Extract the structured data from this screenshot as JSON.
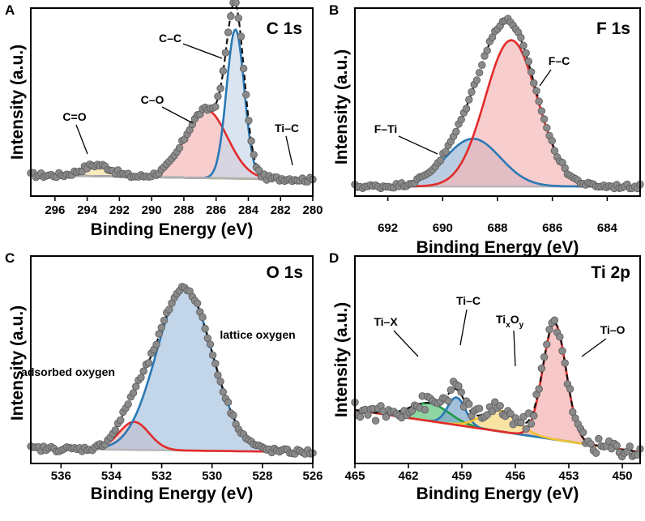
{
  "chart_data": [
    {
      "type": "line",
      "panel": "A",
      "title": "C 1s",
      "xlabel": "Binding Energy (eV)",
      "ylabel": "Intensity (a.u.)",
      "xlim": [
        297.5,
        280
      ],
      "xticks": [
        "296",
        "294",
        "292",
        "290",
        "288",
        "286",
        "284",
        "282",
        "280"
      ],
      "tick_values": [
        296,
        294,
        292,
        290,
        288,
        286,
        284,
        282,
        280
      ],
      "ylim": [
        0,
        1
      ],
      "baseline": [
        [
          297.5,
          0.03
        ],
        [
          280,
          0.0
        ]
      ],
      "peaks": [
        {
          "name": "C=O",
          "center": 293.4,
          "sigma": 0.9,
          "amplitude": 0.07,
          "color": "#f2c230",
          "fill": "#f7e3a0"
        },
        {
          "name": "C–O",
          "center": 286.6,
          "sigma": 1.3,
          "amplitude": 0.42,
          "color": "#e22b2b",
          "fill": "#f4b8b8"
        },
        {
          "name": "C–C",
          "center": 284.8,
          "sigma": 0.55,
          "amplitude": 0.92,
          "color": "#2a78b4",
          "fill": "#c9d9ea"
        },
        {
          "name": "Ti–C",
          "center": 281.5,
          "sigma": 0.5,
          "amplitude": 0.005,
          "color": "#b0b0b0",
          "fill": "#e0e0e0"
        }
      ],
      "annotations": [
        "C=O",
        "C–O",
        "C–C",
        "Ti–C"
      ]
    },
    {
      "type": "line",
      "panel": "B",
      "title": "F 1s",
      "xlabel": "Binding Energy (eV)",
      "ylabel": "Intensity (a.u.)",
      "xlim": [
        693.2,
        682.8
      ],
      "xticks": [
        "692",
        "690",
        "688",
        "686",
        "684"
      ],
      "tick_values": [
        692,
        690,
        688,
        686,
        684
      ],
      "ylim": [
        0,
        1
      ],
      "baseline": [
        [
          693.2,
          0.01
        ],
        [
          682.8,
          0.01
        ]
      ],
      "peaks": [
        {
          "name": "F–Ti",
          "center": 688.9,
          "sigma": 1.0,
          "amplitude": 0.31,
          "color": "#2a78b4",
          "fill": "#9db8d6"
        },
        {
          "name": "F–C",
          "center": 687.5,
          "sigma": 0.95,
          "amplitude": 0.95,
          "color": "#e22b2b",
          "fill": "#f4b8b8"
        }
      ],
      "annotations": [
        "F–Ti",
        "F–C"
      ]
    },
    {
      "type": "line",
      "panel": "C",
      "title": "O 1s",
      "xlabel": "Binding Energy (eV)",
      "ylabel": "Intensity (a.u.)",
      "xlim": [
        537.2,
        526
      ],
      "xticks": [
        "536",
        "534",
        "532",
        "530",
        "528",
        "526"
      ],
      "tick_values": [
        536,
        534,
        532,
        530,
        528,
        526
      ],
      "ylim": [
        0,
        1
      ],
      "baseline": [
        [
          537.2,
          0.02
        ],
        [
          526,
          0.0
        ]
      ],
      "peaks": [
        {
          "name": "adsorbed oxygen",
          "center": 533.1,
          "sigma": 0.6,
          "amplitude": 0.16,
          "color": "#e22b2b",
          "fill": "#f4b8b8"
        },
        {
          "name": "lattice oxygen",
          "center": 531.1,
          "sigma": 1.1,
          "amplitude": 0.93,
          "color": "#2a78b4",
          "fill": "#a9c3de"
        }
      ],
      "annotations": [
        "adsorbed oxygen",
        "lattice oxygen"
      ]
    },
    {
      "type": "line",
      "panel": "D",
      "title": "Ti 2p",
      "xlabel": "Binding Energy (eV)",
      "ylabel": "Intensity (a.u.)",
      "xlim": [
        465,
        449
      ],
      "xticks": [
        "465",
        "462",
        "459",
        "456",
        "453",
        "450"
      ],
      "tick_values": [
        465,
        462,
        459,
        456,
        453,
        450
      ],
      "ylim": [
        0,
        1
      ],
      "baseline": [
        [
          465,
          0.33
        ],
        [
          449,
          0.07
        ]
      ],
      "peaks": [
        {
          "name": "Ti–X",
          "center": 460.8,
          "sigma": 1.1,
          "amplitude": 0.11,
          "color": "#1f9a4a",
          "fill": "#5cc47e"
        },
        {
          "name": "Ti–C",
          "center": 459.3,
          "sigma": 0.5,
          "amplitude": 0.17,
          "color": "#2a78b4",
          "fill": "#7ea6cc"
        },
        {
          "name": "TixOy",
          "center": 456.9,
          "sigma": 1.0,
          "amplitude": 0.13,
          "color": "#f2c230",
          "fill": "#f7d77c"
        },
        {
          "name": "Ti–O",
          "center": 453.8,
          "sigma": 0.65,
          "amplitude": 0.72,
          "color": "#e22b2b",
          "fill": "#f4b0b0"
        }
      ],
      "annotations": [
        "Ti–X",
        "Ti–C",
        "Ti",
        "x",
        "O",
        "y",
        "Ti–O"
      ]
    }
  ],
  "colors": {
    "envelope": "#111111",
    "points": "#8a8a8a",
    "baseline": "#b5b5b5"
  }
}
